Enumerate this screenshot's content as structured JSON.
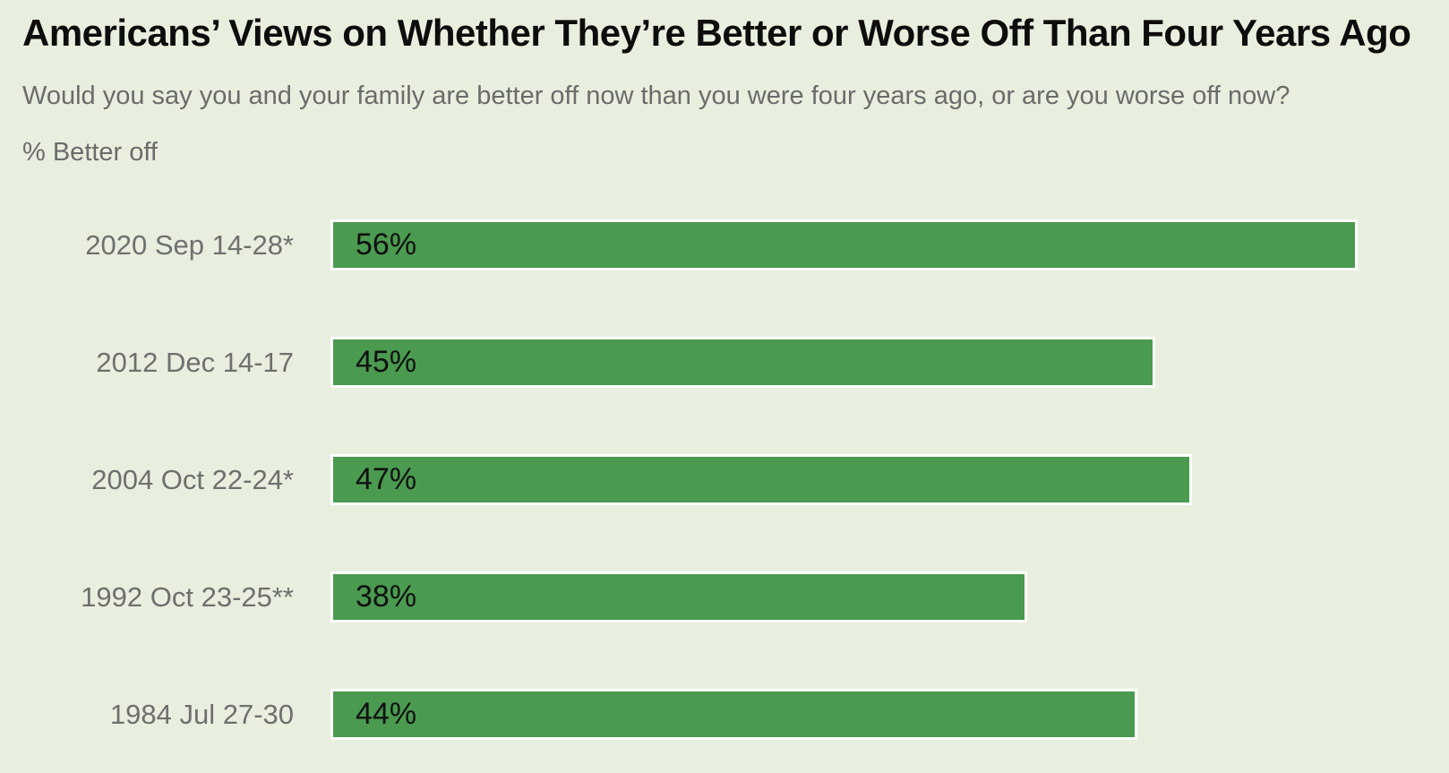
{
  "chart_data": {
    "type": "bar",
    "orientation": "horizontal",
    "title": "Americans’ Views on Whether They’re Better or Worse Off Than Four Years Ago",
    "subtitle": "Would you say you and your family are better off now than you were four years ago, or are you worse off now?",
    "series_label": "% Better off",
    "categories": [
      "2020 Sep 14-28*",
      "2012 Dec 14-17",
      "2004 Oct 22-24*",
      "1992 Oct 23-25**",
      "1984 Jul 27-30"
    ],
    "values": [
      56,
      45,
      47,
      38,
      44
    ],
    "value_labels": [
      "56%",
      "45%",
      "47%",
      "38%",
      "44%"
    ],
    "xlim": [
      0,
      61
    ],
    "grid": false,
    "legend": false,
    "colors": {
      "background": "#e9efde",
      "bar": "#4a9a4f",
      "bar_border": "#ffffff",
      "title_text": "#0d0d0d",
      "subtitle_text": "#6b6b6b",
      "category_text": "#6f6f6f",
      "value_text": "#111111"
    }
  }
}
